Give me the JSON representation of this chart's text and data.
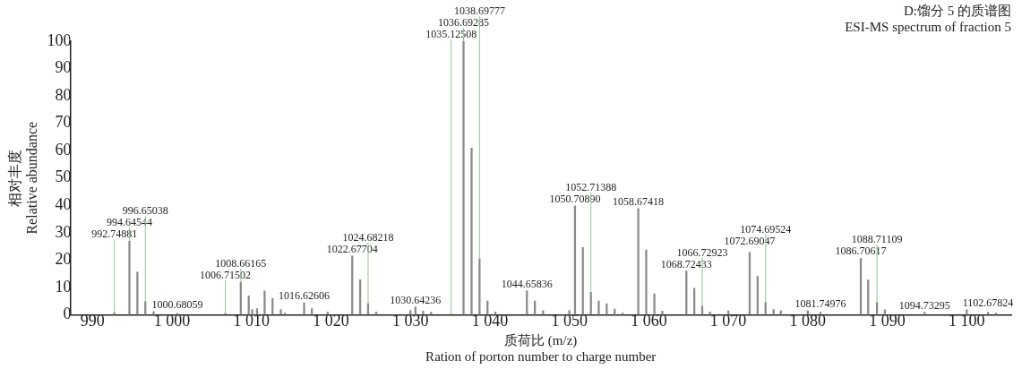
{
  "chart_data": {
    "type": "bar",
    "title": "D:馏分 5 的质谱图",
    "subtitle": "ESI-MS spectrum of fraction 5",
    "xlabel": "质荷比 (m/z)\nRation of porton number to charge number",
    "ylabel": "相对丰度\nRelative abundance",
    "x": [
      992.75,
      994.65,
      995.65,
      996.65,
      997.7,
      1000.68,
      1006.72,
      1008.66,
      1009.66,
      1010.1,
      1010.7,
      1011.66,
      1012.66,
      1013.7,
      1014.2,
      1016.63,
      1017.6,
      1019.6,
      1022.68,
      1023.68,
      1024.68,
      1025.7,
      1030.0,
      1030.64,
      1031.6,
      1032.6,
      1035.13,
      1036.69,
      1037.7,
      1038.7,
      1039.7,
      1040.7,
      1044.66,
      1045.66,
      1046.7,
      1050.0,
      1050.71,
      1051.7,
      1052.71,
      1053.7,
      1054.7,
      1055.7,
      1056.7,
      1058.67,
      1059.67,
      1060.7,
      1061.7,
      1064.72,
      1065.72,
      1066.72,
      1067.7,
      1070.0,
      1072.69,
      1073.69,
      1074.69,
      1075.7,
      1076.6,
      1080.0,
      1081.6,
      1086.67,
      1087.6,
      1088.71,
      1089.7,
      1094.7,
      1100.0,
      1102.68,
      1103.7
    ],
    "values": [
      0.8,
      26.9,
      15.6,
      4.8,
      1.2,
      0.5,
      0.5,
      11.9,
      6.9,
      1.9,
      2.2,
      8.7,
      5.9,
      1.9,
      0.6,
      4.4,
      2.2,
      1,
      21.5,
      12.8,
      4.1,
      1,
      1.6,
      2.8,
      1.3,
      0.9,
      0.3,
      100,
      60.9,
      20.5,
      5,
      1,
      8.8,
      5,
      1.5,
      1.6,
      39.8,
      24.6,
      8.2,
      5,
      4,
      2.1,
      0.6,
      38.8,
      23.7,
      7.6,
      1.3,
      16,
      9.7,
      3.2,
      1,
      1.4,
      22.9,
      14,
      4.5,
      1.9,
      1.5,
      1.5,
      0.9,
      20.6,
      12.7,
      4.5,
      1.8,
      0.9,
      1.8,
      0.9,
      0.6
    ],
    "color": "#8a8a8a",
    "xlim": [
      987.2,
      1105.6
    ],
    "xticks": [
      990,
      {
        "value": 1000,
        "label": "1 000"
      },
      {
        "value": 1010,
        "label": "1 010"
      },
      {
        "value": 1020,
        "label": "1 020"
      },
      {
        "value": 1030,
        "label": "1 030"
      },
      {
        "value": 1040,
        "label": "1 040"
      },
      {
        "value": 1050,
        "label": "1 050"
      },
      {
        "value": 1060,
        "label": "1 060"
      },
      {
        "value": 1070,
        "label": "1 070"
      },
      {
        "value": 1080,
        "label": "1 080"
      },
      {
        "value": 1090,
        "label": "1 090"
      },
      {
        "value": 1100,
        "label": "1 100"
      }
    ],
    "ylim": [
      0,
      100
    ],
    "yticks": [
      0,
      10,
      20,
      30,
      40,
      50,
      60,
      70,
      80,
      90,
      100
    ],
    "annotations": [
      {
        "text": "992.74881",
        "x": 992.75,
        "y": 0.8
      },
      {
        "text": "994.64544",
        "x": 994.65,
        "y": 26.9
      },
      {
        "text": "996.65038",
        "x": 996.65,
        "y": 4.8
      },
      {
        "text": "1000.68059",
        "x": 1000.68,
        "y": 0.5
      },
      {
        "text": "1006.71502",
        "x": 1006.72,
        "y": 0.5
      },
      {
        "text": "1008.66165",
        "x": 1008.66,
        "y": 11.9
      },
      {
        "text": "1016.62606",
        "x": 1016.63,
        "y": 4.4
      },
      {
        "text": "1022.67704",
        "x": 1022.68,
        "y": 21.5
      },
      {
        "text": "1024.68218",
        "x": 1024.68,
        "y": 4.1
      },
      {
        "text": "1030.64236",
        "x": 1030.64,
        "y": 2.8
      },
      {
        "text": "1035.12508",
        "x": 1035.13,
        "y": 0.3
      },
      {
        "text": "1036.69285",
        "x": 1036.69,
        "y": 100
      },
      {
        "text": "1038.69777",
        "x": 1038.7,
        "y": 20.5
      },
      {
        "text": "1044.65836",
        "x": 1044.66,
        "y": 8.8
      },
      {
        "text": "1050.70890",
        "x": 1050.71,
        "y": 39.8
      },
      {
        "text": "1052.71388",
        "x": 1052.71,
        "y": 8.2
      },
      {
        "text": "1058.67418",
        "x": 1058.67,
        "y": 38.8
      },
      {
        "text": "1068.72433",
        "x": 1064.72,
        "y": 16
      },
      {
        "text": "1066.72923",
        "x": 1066.72,
        "y": 3.2
      },
      {
        "text": "1072.69047",
        "x": 1072.69,
        "y": 22.9
      },
      {
        "text": "1074.69524",
        "x": 1074.69,
        "y": 4.5
      },
      {
        "text": "1081.74976",
        "x": 1081.6,
        "y": 0.9
      },
      {
        "text": "1086.70617",
        "x": 1086.67,
        "y": 20.6
      },
      {
        "text": "1088.71109",
        "x": 1088.71,
        "y": 4.5
      },
      {
        "text": "1094.73295",
        "x": 1094.7,
        "y": 0.9
      },
      {
        "text": "1102.67824",
        "x": 1102.68,
        "y": 0.9
      }
    ]
  }
}
